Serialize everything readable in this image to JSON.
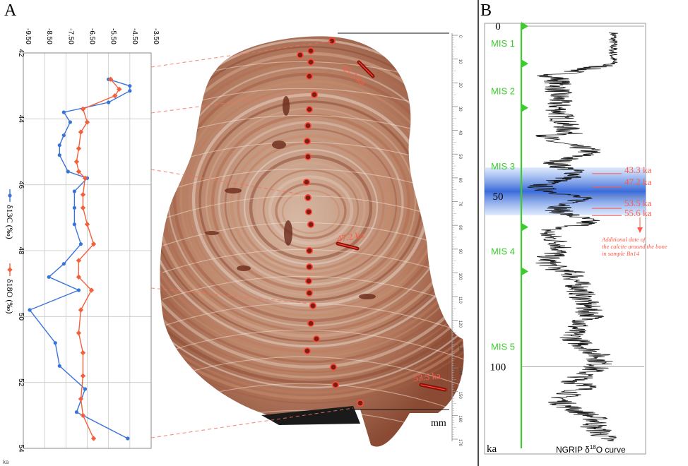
{
  "panel_a_label": "A",
  "panel_b_label": "B",
  "chart_data": [
    {
      "type": "line",
      "panel": "A",
      "x_axis_ticks": [
        "-9.50",
        "-8.50",
        "-7.50",
        "-6.50",
        "-5.50",
        "-4.50",
        "-3.50"
      ],
      "xlim": [
        -9.5,
        -3.5
      ],
      "y_axis_ticks": [
        "42",
        "44",
        "46",
        "48",
        "50",
        "52",
        "54"
      ],
      "ylim": [
        42,
        54
      ],
      "y_unit": "ka",
      "grid": true,
      "series": [
        {
          "name": "δ13C (‰)",
          "color": "#3a74d9",
          "points": [
            [
              -5.5,
              42.8
            ],
            [
              -4.5,
              43.0
            ],
            [
              -4.5,
              43.15
            ],
            [
              -5.5,
              43.5
            ],
            [
              -7.6,
              43.8
            ],
            [
              -7.3,
              44.1
            ],
            [
              -7.6,
              44.5
            ],
            [
              -7.8,
              44.8
            ],
            [
              -7.8,
              45.1
            ],
            [
              -7.4,
              45.6
            ],
            [
              -6.5,
              45.8
            ],
            [
              -7.1,
              46.2
            ],
            [
              -7.1,
              46.7
            ],
            [
              -7.1,
              47.2
            ],
            [
              -6.8,
              47.8
            ],
            [
              -7.6,
              48.4
            ],
            [
              -8.3,
              48.8
            ],
            [
              -6.9,
              49.2
            ],
            [
              -9.2,
              49.8
            ],
            [
              -8.0,
              50.8
            ],
            [
              -7.8,
              51.5
            ],
            [
              -6.6,
              52.2
            ],
            [
              -7.0,
              52.9
            ],
            [
              -4.6,
              53.7
            ]
          ]
        },
        {
          "name": "δ18O (‰)",
          "color": "#f2603c",
          "points": [
            [
              -5.4,
              42.8
            ],
            [
              -5.0,
              43.1
            ],
            [
              -5.2,
              43.3
            ],
            [
              -6.7,
              43.7
            ],
            [
              -6.5,
              44.1
            ],
            [
              -6.8,
              44.4
            ],
            [
              -6.9,
              44.9
            ],
            [
              -7.0,
              45.3
            ],
            [
              -6.9,
              45.6
            ],
            [
              -6.6,
              45.8
            ],
            [
              -6.7,
              46.3
            ],
            [
              -6.7,
              46.7
            ],
            [
              -6.5,
              47.2
            ],
            [
              -6.2,
              47.8
            ],
            [
              -6.9,
              48.3
            ],
            [
              -6.9,
              48.8
            ],
            [
              -6.3,
              49.2
            ],
            [
              -6.8,
              49.8
            ],
            [
              -6.9,
              50.5
            ],
            [
              -6.7,
              51.1
            ],
            [
              -6.7,
              51.8
            ],
            [
              -6.8,
              52.5
            ],
            [
              -6.7,
              53.0
            ],
            [
              -6.2,
              53.7
            ]
          ]
        }
      ]
    },
    {
      "type": "line",
      "panel": "B",
      "title": "NGRIP δ18O curve",
      "title_parts": {
        "pre": "NGRIP δ",
        "sup": "18",
        "post": "O curve"
      },
      "y_axis_ticks": [
        "0",
        "50",
        "100"
      ],
      "ylim": [
        0,
        125
      ],
      "y_unit": "ka",
      "mis_labels": [
        {
          "label": "MIS 1",
          "age": 5
        },
        {
          "label": "MIS 2",
          "age": 19
        },
        {
          "label": "MIS 3",
          "age": 41
        },
        {
          "label": "MIS 4",
          "age": 66
        },
        {
          "label": "MIS 5",
          "age": 94
        }
      ],
      "mis_boundaries_ka": [
        0,
        11,
        24,
        59,
        72
      ],
      "shaded_band_ka": [
        41.5,
        55.5
      ],
      "dates": [
        {
          "label": "43.3 ka",
          "age": 43.3
        },
        {
          "label": "47.2 ka",
          "age": 47.2
        },
        {
          "label": "53.5 ka",
          "age": 53.5
        },
        {
          "label": "55.6 ka",
          "age": 55.6
        }
      ],
      "note": "Additional date of the calcite around the bone in sample Bn14",
      "note_lines": [
        "Additional date of",
        "the calcite around the bone",
        "in sample Bn14"
      ]
    }
  ],
  "specimen": {
    "scale_unit": "mm",
    "scale_ticks": [
      "0",
      "10",
      "20",
      "30",
      "40",
      "50",
      "60",
      "70",
      "80",
      "90",
      "100",
      "110",
      "120",
      "130",
      "140",
      "150",
      "160",
      "170"
    ],
    "dates": [
      {
        "label": "43.3 ka"
      },
      {
        "label": "47.2 ka"
      },
      {
        "label": "53.5 ka"
      }
    ]
  }
}
